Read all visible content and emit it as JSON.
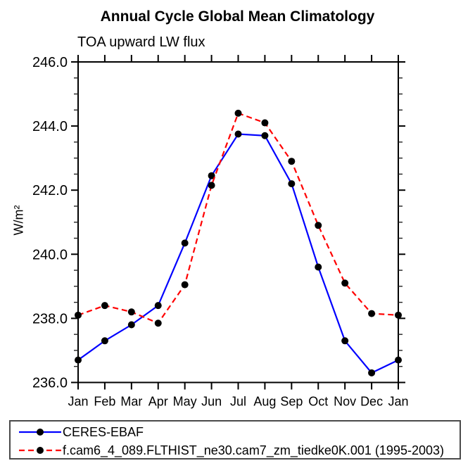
{
  "page": {
    "background": "#ffffff",
    "text_color": "#000000"
  },
  "chart": {
    "title": "Annual Cycle Global Mean Climatology",
    "subtitle": "TOA upward LW flux",
    "ylabel": "W/m²"
  },
  "legend": {
    "items": [
      {
        "label": "CERES-EBAF",
        "color": "#0000ff",
        "line_style": "solid",
        "marker": "circle",
        "marker_color": "#000000"
      },
      {
        "label": "f.cam6_4_089.FLTHIST_ne30.cam7_zm_tiedke0K.001 (1995-2003)",
        "color": "#ff0000",
        "line_style": "dashed",
        "marker": "circle",
        "marker_color": "#000000"
      }
    ]
  },
  "chart_data": {
    "type": "line",
    "title": "Annual Cycle Global Mean Climatology",
    "subtitle": "TOA upward LW flux",
    "xlabel": "",
    "ylabel": "W/m²",
    "categories": [
      "Jan",
      "Feb",
      "Mar",
      "Apr",
      "May",
      "Jun",
      "Jul",
      "Aug",
      "Sep",
      "Oct",
      "Nov",
      "Dec",
      "Jan"
    ],
    "series": [
      {
        "name": "CERES-EBAF",
        "color": "#0000ff",
        "line_style": "solid",
        "marker": "circle",
        "marker_color": "#000000",
        "values": [
          236.7,
          237.3,
          237.8,
          238.4,
          240.35,
          242.45,
          243.75,
          243.7,
          242.2,
          239.6,
          237.3,
          236.3,
          236.7
        ]
      },
      {
        "name": "f.cam6_4_089.FLTHIST_ne30.cam7_zm_tiedke0K.001 (1995-2003)",
        "color": "#ff0000",
        "line_style": "dashed",
        "marker": "circle",
        "marker_color": "#000000",
        "values": [
          238.1,
          238.4,
          238.2,
          237.85,
          239.05,
          242.15,
          244.4,
          244.1,
          242.9,
          240.9,
          239.1,
          238.15,
          238.1
        ]
      }
    ],
    "ylim": [
      236.0,
      246.0
    ],
    "ytick_major_interval": 2.0,
    "ytick_minor_interval": 0.5,
    "ytick_labels": [
      "236.0",
      "238.0",
      "240.0",
      "242.0",
      "244.0",
      "246.0"
    ],
    "grid": false,
    "axis_color": "#000000",
    "legend_position": "bottom-left-box"
  }
}
